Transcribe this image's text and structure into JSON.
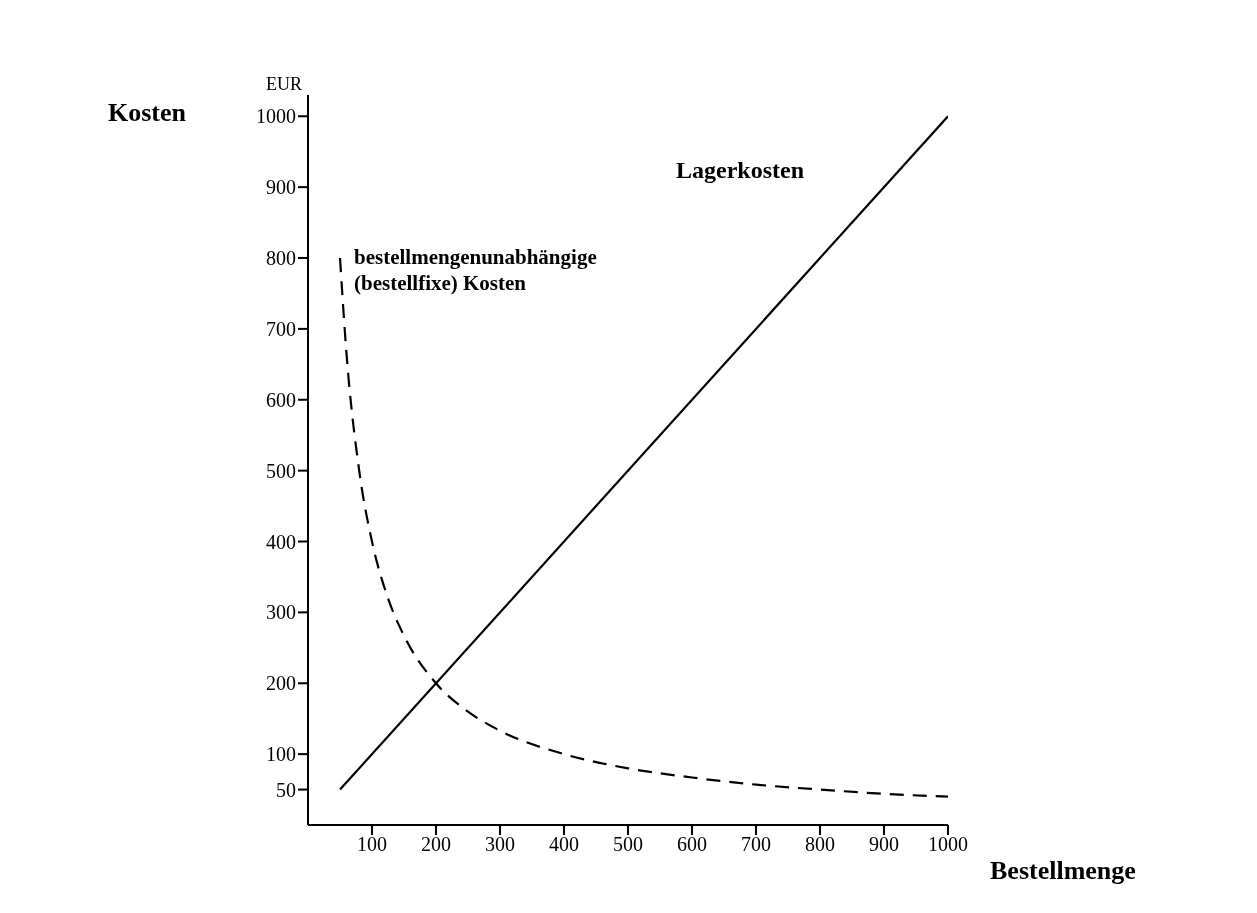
{
  "chart_data": {
    "type": "line",
    "xlabel": "Bestellmenge",
    "ylabel": "Kosten",
    "annotations": [
      "EUR"
    ],
    "xlim": [
      0,
      1000
    ],
    "xticks": [
      100,
      200,
      300,
      400,
      500,
      600,
      700,
      800,
      900,
      1000
    ],
    "ylim": [
      0,
      1030
    ],
    "yticks": [
      50,
      100,
      200,
      300,
      400,
      500,
      600,
      700,
      800,
      900,
      1000
    ],
    "grid": false,
    "legend": false,
    "marker": "none",
    "series": [
      {
        "name": "Lagerkosten",
        "color": "#000000",
        "line_style": "solid",
        "x": [
          50,
          1000
        ],
        "values": [
          50,
          1000
        ]
      },
      {
        "name": "bestellmengenunabhängige (bestellfixe) Kosten",
        "color": "#000000",
        "line_style": "dashed",
        "x": [
          50,
          60,
          80,
          100,
          125,
          150,
          200,
          250,
          300,
          400,
          500,
          600,
          700,
          800,
          900,
          1000
        ],
        "values": [
          800,
          667,
          500,
          400,
          320,
          267,
          200,
          160,
          133,
          100,
          80,
          67,
          57,
          50,
          44,
          40
        ]
      }
    ]
  }
}
